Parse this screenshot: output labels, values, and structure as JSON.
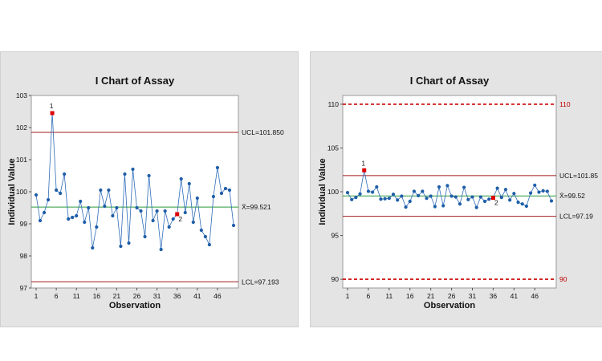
{
  "colors": {
    "series": "#2e6cb8",
    "marker": "#1f5ea8",
    "out_of_control": "#e00000",
    "center_line": "#2a9a3a",
    "control_limit": "#a01818",
    "spec_limit": "#cc0000",
    "panel_bg": "#e4e4e4",
    "plot_bg": "#ffffff"
  },
  "chart_data": [
    {
      "type": "line",
      "title": "I Chart of Assay",
      "xlabel": "Observation",
      "ylabel": "Individual Value",
      "ylim": [
        97,
        103
      ],
      "xlim": [
        1,
        50
      ],
      "yticks": [
        "97",
        "98",
        "99",
        "100",
        "101",
        "102",
        "103"
      ],
      "xticks": [
        "1",
        "6",
        "11",
        "16",
        "21",
        "26",
        "31",
        "36",
        "41",
        "46"
      ],
      "x": [
        1,
        2,
        3,
        4,
        5,
        6,
        7,
        8,
        9,
        10,
        11,
        12,
        13,
        14,
        15,
        16,
        17,
        18,
        19,
        20,
        21,
        22,
        23,
        24,
        25,
        26,
        27,
        28,
        29,
        30,
        31,
        32,
        33,
        34,
        35,
        36,
        37,
        38,
        39,
        40,
        41,
        42,
        43,
        44,
        45,
        46,
        47,
        48,
        49,
        50
      ],
      "series": [
        {
          "values": [
            99.9,
            99.1,
            99.35,
            99.75,
            102.45,
            100.05,
            99.95,
            100.55,
            99.15,
            99.2,
            99.25,
            99.7,
            99.05,
            99.5,
            98.25,
            98.9,
            100.05,
            99.55,
            100.05,
            99.25,
            99.5,
            98.3,
            100.55,
            98.4,
            100.7,
            99.5,
            99.4,
            98.6,
            100.5,
            99.1,
            99.4,
            98.2,
            99.4,
            98.9,
            99.15,
            99.3,
            100.4,
            99.35,
            100.25,
            99.05,
            99.8,
            98.8,
            98.6,
            98.35,
            99.85,
            100.75,
            99.95,
            100.1,
            100.05,
            98.95
          ]
        }
      ],
      "control_lines": {
        "ucl": {
          "value": 101.85,
          "label": "UCL=101.850"
        },
        "center": {
          "value": 99.521,
          "label": "X̄=99.521"
        },
        "lcl": {
          "value": 97.193,
          "label": "LCL=97.193"
        }
      },
      "spec_lines": [],
      "annotations": [
        {
          "x": 5,
          "y": 102.45,
          "label": "1"
        },
        {
          "x": 36,
          "y": 99.3,
          "label": "2"
        }
      ],
      "grid": false,
      "legend": "none"
    },
    {
      "type": "line",
      "title": "I Chart of Assay",
      "xlabel": "Observation",
      "ylabel": "Individual Value",
      "ylim": [
        89,
        111
      ],
      "xlim": [
        1,
        50
      ],
      "yticks": [
        "90",
        "95",
        "100",
        "105",
        "110"
      ],
      "xticks": [
        "1",
        "6",
        "11",
        "16",
        "21",
        "26",
        "31",
        "36",
        "41",
        "46"
      ],
      "x": [
        1,
        2,
        3,
        4,
        5,
        6,
        7,
        8,
        9,
        10,
        11,
        12,
        13,
        14,
        15,
        16,
        17,
        18,
        19,
        20,
        21,
        22,
        23,
        24,
        25,
        26,
        27,
        28,
        29,
        30,
        31,
        32,
        33,
        34,
        35,
        36,
        37,
        38,
        39,
        40,
        41,
        42,
        43,
        44,
        45,
        46,
        47,
        48,
        49,
        50
      ],
      "series": [
        {
          "values": [
            99.9,
            99.1,
            99.35,
            99.75,
            102.45,
            100.05,
            99.95,
            100.55,
            99.15,
            99.2,
            99.25,
            99.7,
            99.05,
            99.5,
            98.25,
            98.9,
            100.05,
            99.55,
            100.05,
            99.25,
            99.5,
            98.3,
            100.55,
            98.4,
            100.7,
            99.5,
            99.4,
            98.6,
            100.5,
            99.1,
            99.4,
            98.2,
            99.4,
            98.9,
            99.15,
            99.3,
            100.4,
            99.35,
            100.25,
            99.05,
            99.8,
            98.8,
            98.6,
            98.35,
            99.85,
            100.75,
            99.95,
            100.1,
            100.05,
            98.95
          ]
        }
      ],
      "control_lines": {
        "ucl": {
          "value": 101.85,
          "label": "UCL=101.85"
        },
        "center": {
          "value": 99.52,
          "label": "X̄=99.52"
        },
        "lcl": {
          "value": 97.19,
          "label": "LCL=97.19"
        }
      },
      "spec_lines": [
        {
          "value": 110,
          "label": "110"
        },
        {
          "value": 90,
          "label": "90"
        }
      ],
      "annotations": [
        {
          "x": 5,
          "y": 102.45,
          "label": "1"
        },
        {
          "x": 36,
          "y": 99.3,
          "label": "2"
        }
      ],
      "grid": false,
      "legend": "none"
    }
  ]
}
